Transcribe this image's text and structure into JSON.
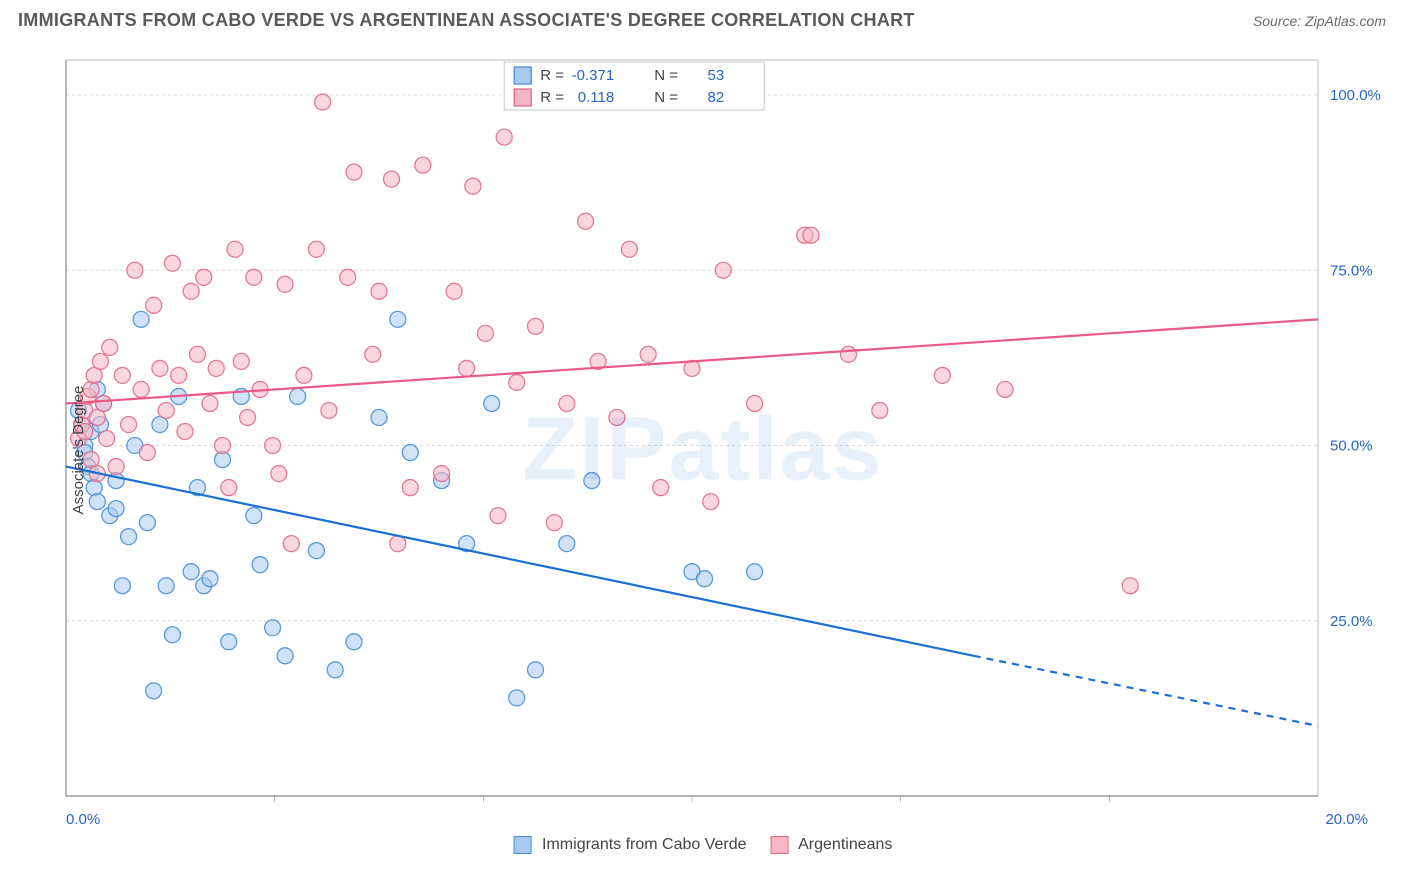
{
  "title": "IMMIGRANTS FROM CABO VERDE VS ARGENTINEAN ASSOCIATE'S DEGREE CORRELATION CHART",
  "source": "Source: ZipAtlas.com",
  "watermark": "ZIPatlas",
  "chart": {
    "type": "scatter",
    "background_color": "#ffffff",
    "grid_color": "#d9d9d9",
    "axis_color": "#888888",
    "plot_border_color": "#bcbcbc",
    "ylabel": "Associate's Degree",
    "xlim": [
      0,
      20
    ],
    "ylim": [
      0,
      105
    ],
    "xtick_labels": [
      "0.0%",
      "20.0%"
    ],
    "xtick_positions": [
      0,
      20
    ],
    "xtick_minor": [
      3.33,
      6.67,
      10,
      13.33,
      16.67
    ],
    "ytick_labels": [
      "25.0%",
      "50.0%",
      "75.0%",
      "100.0%"
    ],
    "ytick_positions": [
      25,
      50,
      75,
      100
    ],
    "marker_radius": 8,
    "marker_opacity": 0.55,
    "marker_stroke_opacity": 0.9,
    "line_width": 2.2,
    "series": [
      {
        "name": "Immigrants from Cabo Verde",
        "short": "cabo",
        "color_fill": "#a8caf0",
        "color_stroke": "#4a8fd8",
        "line_color": "#1d6fd1",
        "R": "-0.371",
        "N": "53",
        "trend": {
          "x1": 0,
          "y1": 47,
          "x2": 14.5,
          "y2": 20,
          "dash_after_x": 14.5,
          "dash_to_x": 20,
          "dash_to_y": 10
        },
        "points": [
          [
            0.2,
            55
          ],
          [
            0.25,
            53
          ],
          [
            0.3,
            50
          ],
          [
            0.3,
            49
          ],
          [
            0.35,
            47
          ],
          [
            0.4,
            52
          ],
          [
            0.4,
            46
          ],
          [
            0.45,
            44
          ],
          [
            0.5,
            58
          ],
          [
            0.5,
            42
          ],
          [
            0.55,
            53
          ],
          [
            0.6,
            56
          ],
          [
            0.7,
            40
          ],
          [
            0.8,
            45
          ],
          [
            0.8,
            41
          ],
          [
            0.9,
            30
          ],
          [
            1.0,
            37
          ],
          [
            1.1,
            50
          ],
          [
            1.2,
            68
          ],
          [
            1.3,
            39
          ],
          [
            1.4,
            15
          ],
          [
            1.5,
            53
          ],
          [
            1.6,
            30
          ],
          [
            1.7,
            23
          ],
          [
            1.8,
            57
          ],
          [
            2.0,
            32
          ],
          [
            2.1,
            44
          ],
          [
            2.2,
            30
          ],
          [
            2.3,
            31
          ],
          [
            2.5,
            48
          ],
          [
            2.6,
            22
          ],
          [
            2.8,
            57
          ],
          [
            3.0,
            40
          ],
          [
            3.1,
            33
          ],
          [
            3.3,
            24
          ],
          [
            3.5,
            20
          ],
          [
            3.7,
            57
          ],
          [
            4.0,
            35
          ],
          [
            4.3,
            18
          ],
          [
            4.6,
            22
          ],
          [
            5.0,
            54
          ],
          [
            5.3,
            68
          ],
          [
            5.5,
            49
          ],
          [
            6.0,
            45
          ],
          [
            6.4,
            36
          ],
          [
            6.8,
            56
          ],
          [
            7.2,
            14
          ],
          [
            7.5,
            18
          ],
          [
            8.0,
            36
          ],
          [
            8.4,
            45
          ],
          [
            10.0,
            32
          ],
          [
            10.2,
            31
          ],
          [
            11.0,
            32
          ]
        ]
      },
      {
        "name": "Argentineans",
        "short": "arg",
        "color_fill": "#f5b6c6",
        "color_stroke": "#e06b8b",
        "line_color": "#e95a89",
        "R": "0.118",
        "N": "82",
        "trend": {
          "x1": 0,
          "y1": 56,
          "x2": 20,
          "y2": 68
        },
        "points": [
          [
            0.2,
            51
          ],
          [
            0.25,
            53
          ],
          [
            0.3,
            55
          ],
          [
            0.3,
            52
          ],
          [
            0.35,
            57
          ],
          [
            0.4,
            48
          ],
          [
            0.4,
            58
          ],
          [
            0.45,
            60
          ],
          [
            0.5,
            54
          ],
          [
            0.5,
            46
          ],
          [
            0.55,
            62
          ],
          [
            0.6,
            56
          ],
          [
            0.65,
            51
          ],
          [
            0.7,
            64
          ],
          [
            0.8,
            47
          ],
          [
            0.9,
            60
          ],
          [
            1.0,
            53
          ],
          [
            1.1,
            75
          ],
          [
            1.2,
            58
          ],
          [
            1.3,
            49
          ],
          [
            1.4,
            70
          ],
          [
            1.5,
            61
          ],
          [
            1.6,
            55
          ],
          [
            1.7,
            76
          ],
          [
            1.8,
            60
          ],
          [
            1.9,
            52
          ],
          [
            2.0,
            72
          ],
          [
            2.1,
            63
          ],
          [
            2.2,
            74
          ],
          [
            2.3,
            56
          ],
          [
            2.4,
            61
          ],
          [
            2.5,
            50
          ],
          [
            2.6,
            44
          ],
          [
            2.7,
            78
          ],
          [
            2.8,
            62
          ],
          [
            2.9,
            54
          ],
          [
            3.0,
            74
          ],
          [
            3.1,
            58
          ],
          [
            3.3,
            50
          ],
          [
            3.4,
            46
          ],
          [
            3.5,
            73
          ],
          [
            3.6,
            36
          ],
          [
            3.8,
            60
          ],
          [
            4.0,
            78
          ],
          [
            4.1,
            99
          ],
          [
            4.2,
            55
          ],
          [
            4.5,
            74
          ],
          [
            4.6,
            89
          ],
          [
            4.9,
            63
          ],
          [
            5.0,
            72
          ],
          [
            5.2,
            88
          ],
          [
            5.3,
            36
          ],
          [
            5.5,
            44
          ],
          [
            5.7,
            90
          ],
          [
            6.0,
            46
          ],
          [
            6.2,
            72
          ],
          [
            6.4,
            61
          ],
          [
            6.5,
            87
          ],
          [
            6.7,
            66
          ],
          [
            6.9,
            40
          ],
          [
            7.0,
            94
          ],
          [
            7.2,
            59
          ],
          [
            7.5,
            67
          ],
          [
            7.8,
            39
          ],
          [
            8.0,
            56
          ],
          [
            8.3,
            82
          ],
          [
            8.5,
            62
          ],
          [
            8.8,
            54
          ],
          [
            9.0,
            78
          ],
          [
            9.3,
            63
          ],
          [
            9.5,
            44
          ],
          [
            10.0,
            61
          ],
          [
            10.3,
            42
          ],
          [
            10.5,
            75
          ],
          [
            11.0,
            56
          ],
          [
            11.8,
            80
          ],
          [
            11.9,
            80
          ],
          [
            12.5,
            63
          ],
          [
            13.0,
            55
          ],
          [
            14.0,
            60
          ],
          [
            15.0,
            58
          ],
          [
            17.0,
            30
          ]
        ]
      }
    ],
    "legend_box": {
      "R_label": "R =",
      "N_label": "N ="
    },
    "bottom_legend": {
      "items": [
        "Immigrants from Cabo Verde",
        "Argentineans"
      ]
    }
  }
}
